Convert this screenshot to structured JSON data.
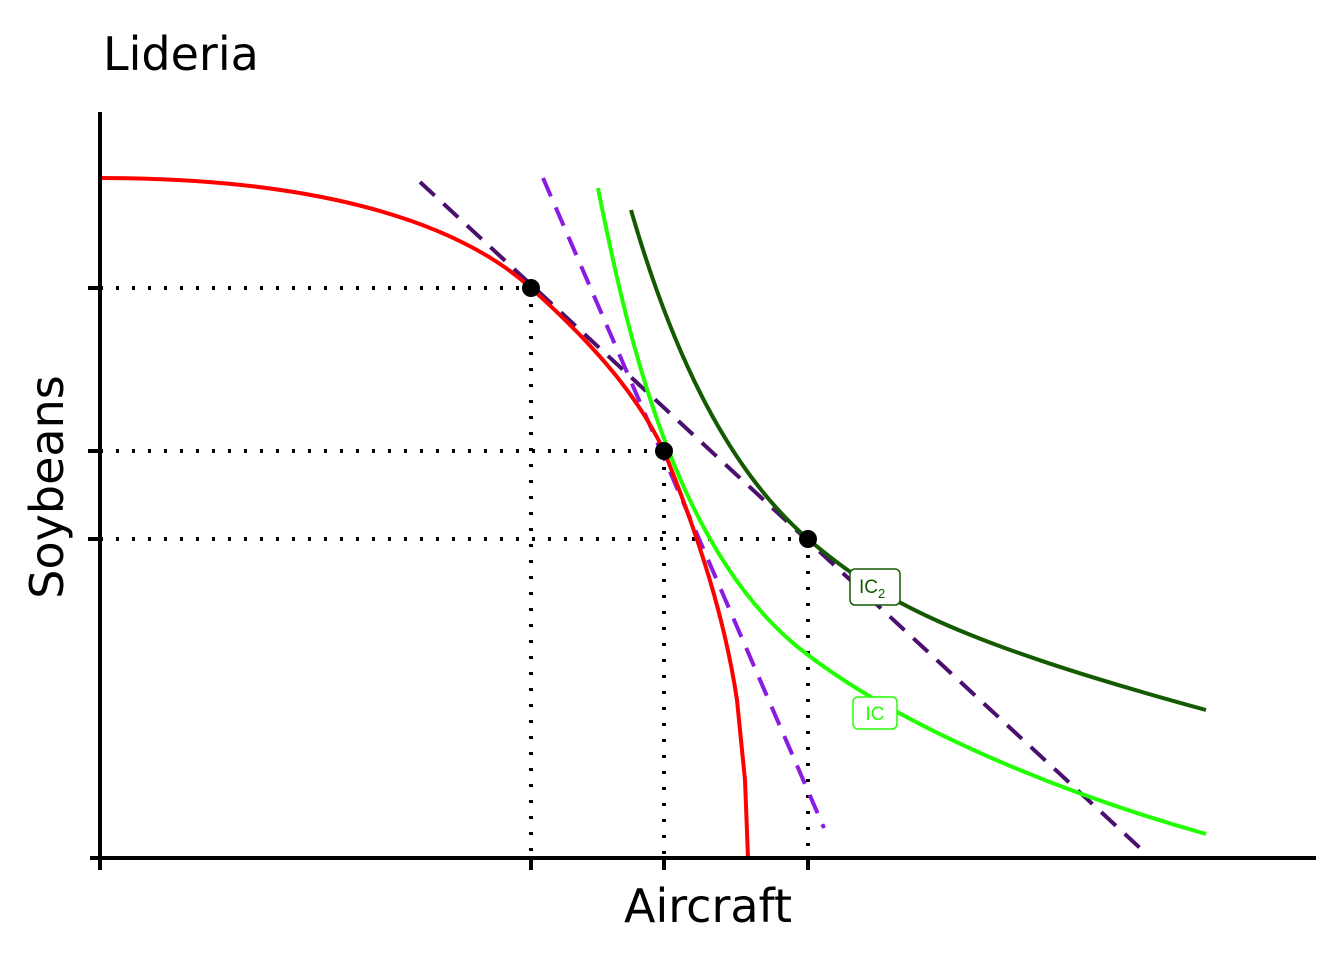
{
  "title": "Lideria",
  "x_axis_label": "Aircraft",
  "y_axis_label": "Soybeans",
  "curve_labels": [
    {
      "text": "IC",
      "subscript": "2"
    },
    {
      "text": "IC"
    }
  ]
}
